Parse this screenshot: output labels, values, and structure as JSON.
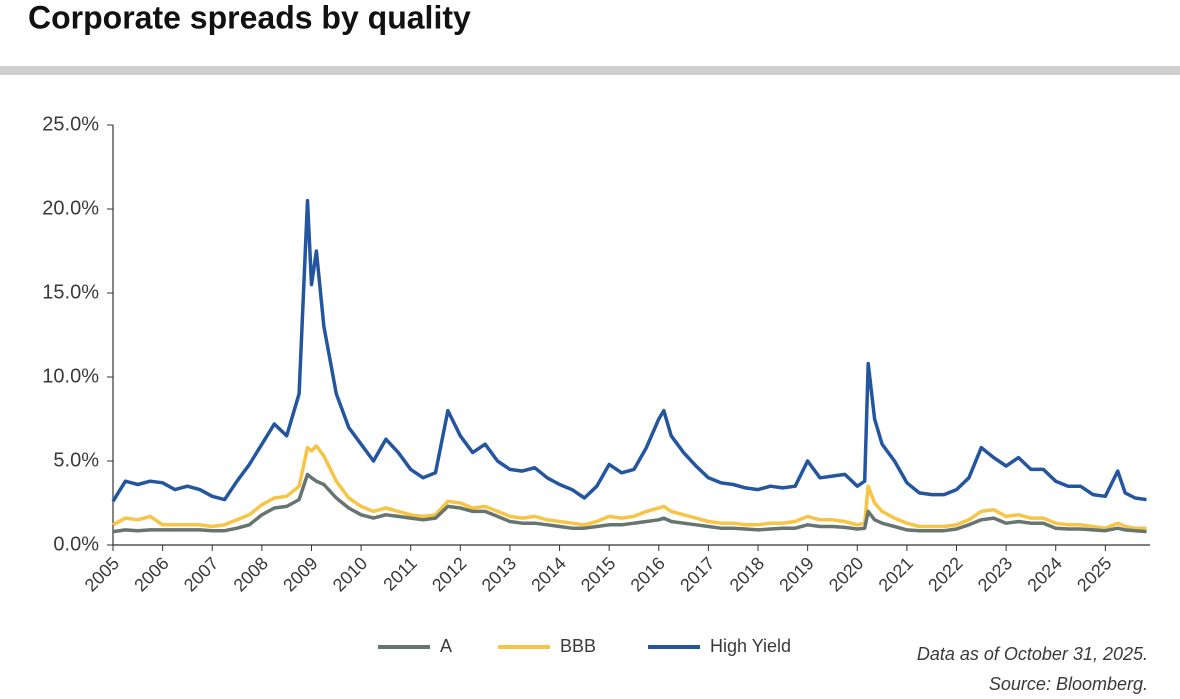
{
  "chart_data": {
    "type": "line",
    "title": "Corporate spreads by quality",
    "annotations": [
      "Data as of October 31, 2025.",
      "Source: Bloomberg."
    ],
    "x": [
      2005.0,
      2005.25,
      2005.5,
      2005.75,
      2006.0,
      2006.25,
      2006.5,
      2006.75,
      2007.0,
      2007.25,
      2007.5,
      2007.75,
      2008.0,
      2008.25,
      2008.5,
      2008.75,
      2008.92,
      2009.0,
      2009.1,
      2009.25,
      2009.5,
      2009.75,
      2010.0,
      2010.25,
      2010.5,
      2010.75,
      2011.0,
      2011.25,
      2011.5,
      2011.75,
      2012.0,
      2012.25,
      2012.5,
      2012.75,
      2013.0,
      2013.25,
      2013.5,
      2013.75,
      2014.0,
      2014.25,
      2014.5,
      2014.75,
      2015.0,
      2015.25,
      2015.5,
      2015.75,
      2016.0,
      2016.1,
      2016.25,
      2016.5,
      2016.75,
      2017.0,
      2017.25,
      2017.5,
      2017.75,
      2018.0,
      2018.25,
      2018.5,
      2018.75,
      2019.0,
      2019.25,
      2019.5,
      2019.75,
      2020.0,
      2020.15,
      2020.22,
      2020.35,
      2020.5,
      2020.75,
      2021.0,
      2021.25,
      2021.5,
      2021.75,
      2022.0,
      2022.25,
      2022.5,
      2022.75,
      2023.0,
      2023.25,
      2023.5,
      2023.75,
      2024.0,
      2024.25,
      2024.5,
      2024.75,
      2025.0,
      2025.25,
      2025.4,
      2025.6,
      2025.83
    ],
    "series": [
      {
        "name": "A",
        "color": "#66756f",
        "values": [
          0.8,
          0.9,
          0.85,
          0.9,
          0.9,
          0.9,
          0.9,
          0.9,
          0.85,
          0.85,
          1.0,
          1.2,
          1.8,
          2.2,
          2.3,
          2.7,
          4.2,
          4.0,
          3.8,
          3.6,
          2.8,
          2.2,
          1.8,
          1.6,
          1.8,
          1.7,
          1.6,
          1.5,
          1.6,
          2.3,
          2.2,
          2.0,
          2.0,
          1.7,
          1.4,
          1.3,
          1.3,
          1.2,
          1.1,
          1.0,
          1.0,
          1.1,
          1.2,
          1.2,
          1.3,
          1.4,
          1.5,
          1.6,
          1.4,
          1.3,
          1.2,
          1.1,
          1.0,
          1.0,
          0.95,
          0.9,
          0.95,
          1.0,
          1.0,
          1.2,
          1.1,
          1.1,
          1.05,
          0.95,
          1.0,
          2.0,
          1.5,
          1.3,
          1.1,
          0.9,
          0.85,
          0.85,
          0.85,
          0.95,
          1.2,
          1.5,
          1.6,
          1.3,
          1.4,
          1.3,
          1.3,
          1.0,
          0.95,
          0.95,
          0.9,
          0.85,
          1.0,
          0.9,
          0.85,
          0.8
        ]
      },
      {
        "name": "BBB",
        "color": "#f7c445",
        "values": [
          1.2,
          1.6,
          1.5,
          1.7,
          1.2,
          1.2,
          1.2,
          1.2,
          1.1,
          1.2,
          1.5,
          1.8,
          2.4,
          2.8,
          2.9,
          3.5,
          5.8,
          5.6,
          5.9,
          5.3,
          3.8,
          2.8,
          2.3,
          2.0,
          2.2,
          2.0,
          1.8,
          1.7,
          1.8,
          2.6,
          2.5,
          2.2,
          2.3,
          2.0,
          1.7,
          1.6,
          1.7,
          1.5,
          1.4,
          1.3,
          1.2,
          1.4,
          1.7,
          1.6,
          1.7,
          2.0,
          2.2,
          2.3,
          2.0,
          1.8,
          1.6,
          1.4,
          1.3,
          1.3,
          1.2,
          1.2,
          1.3,
          1.3,
          1.4,
          1.7,
          1.5,
          1.5,
          1.4,
          1.2,
          1.3,
          3.5,
          2.5,
          2.0,
          1.6,
          1.3,
          1.1,
          1.1,
          1.1,
          1.2,
          1.5,
          2.0,
          2.1,
          1.7,
          1.8,
          1.6,
          1.6,
          1.3,
          1.2,
          1.2,
          1.1,
          1.0,
          1.3,
          1.1,
          1.0,
          1.0
        ]
      },
      {
        "name": "High Yield",
        "color": "#23569f",
        "values": [
          2.6,
          3.8,
          3.6,
          3.8,
          3.7,
          3.3,
          3.5,
          3.3,
          2.9,
          2.7,
          3.8,
          4.8,
          6.0,
          7.2,
          6.5,
          9.0,
          20.5,
          15.5,
          17.5,
          13.0,
          9.0,
          7.0,
          6.0,
          5.0,
          6.3,
          5.5,
          4.5,
          4.0,
          4.3,
          8.0,
          6.5,
          5.5,
          6.0,
          5.0,
          4.5,
          4.4,
          4.6,
          4.0,
          3.6,
          3.3,
          2.8,
          3.5,
          4.8,
          4.3,
          4.5,
          5.8,
          7.5,
          8.0,
          6.5,
          5.5,
          4.7,
          4.0,
          3.7,
          3.6,
          3.4,
          3.3,
          3.5,
          3.4,
          3.5,
          5.0,
          4.0,
          4.1,
          4.2,
          3.5,
          3.8,
          10.8,
          7.5,
          6.0,
          5.0,
          3.7,
          3.1,
          3.0,
          3.0,
          3.3,
          4.0,
          5.8,
          5.2,
          4.7,
          5.2,
          4.5,
          4.5,
          3.8,
          3.5,
          3.5,
          3.0,
          2.9,
          4.4,
          3.1,
          2.8,
          2.7
        ]
      }
    ],
    "xlim": [
      2005,
      2025.9
    ],
    "xticks": [
      2005,
      2006,
      2007,
      2008,
      2009,
      2010,
      2011,
      2012,
      2013,
      2014,
      2015,
      2016,
      2017,
      2018,
      2019,
      2020,
      2021,
      2022,
      2023,
      2024,
      2025
    ],
    "ylim": [
      0,
      25
    ],
    "yticks": [
      {
        "value": 0,
        "label": "0.0%"
      },
      {
        "value": 5,
        "label": "5.0%"
      },
      {
        "value": 10,
        "label": "10.0%"
      },
      {
        "value": 15,
        "label": "15.0%"
      },
      {
        "value": 20,
        "label": "20.0%"
      },
      {
        "value": 25,
        "label": "25.0%"
      }
    ],
    "legend": "bottom"
  }
}
